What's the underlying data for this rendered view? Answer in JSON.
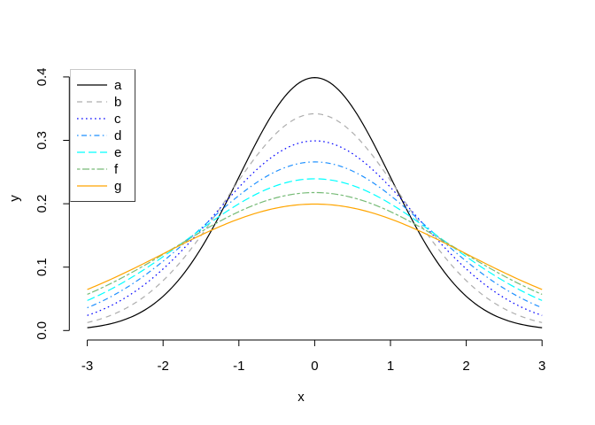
{
  "chart_data": {
    "type": "line",
    "title": "",
    "xlabel": "x",
    "ylabel": "y",
    "x_range": [
      -3,
      3
    ],
    "ylim": [
      0,
      0.4
    ],
    "x_ticks": [
      "-3",
      "-2",
      "-1",
      "0",
      "1",
      "2",
      "3"
    ],
    "y_ticks": [
      "0.0",
      "0.1",
      "0.2",
      "0.3",
      "0.4"
    ],
    "grid": "off",
    "legend_position": "top-left",
    "curve_model": "normal probability density, mean 0, x from -3 to 3",
    "series": [
      {
        "name": "a",
        "sd": 1.0,
        "peak": 0.399,
        "color": "#000000",
        "linetype": "solid"
      },
      {
        "name": "b",
        "sd": 1.1667,
        "peak": 0.342,
        "color": "#adadad",
        "linetype": "dashed"
      },
      {
        "name": "c",
        "sd": 1.3333,
        "peak": 0.299,
        "color": "#0000ff",
        "linetype": "dotted"
      },
      {
        "name": "d",
        "sd": 1.5,
        "peak": 0.266,
        "color": "#1e90ff",
        "linetype": "dotdash"
      },
      {
        "name": "e",
        "sd": 1.6667,
        "peak": 0.239,
        "color": "#00ffff",
        "linetype": "longdash"
      },
      {
        "name": "f",
        "sd": 1.8333,
        "peak": 0.218,
        "color": "#77bb77",
        "linetype": "twodash"
      },
      {
        "name": "g",
        "sd": 2.0,
        "peak": 0.199,
        "color": "#ffa500",
        "linetype": "solid"
      }
    ]
  }
}
